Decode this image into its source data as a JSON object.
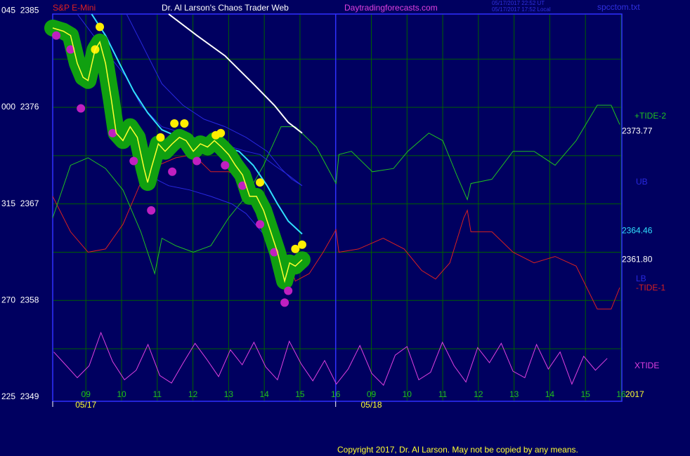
{
  "chart_data": {
    "type": "line",
    "instrument": "S&P E-Mini",
    "title": "Dr. Al Larson's Chaos Trader Web",
    "site": "Daytradingforecasts.com",
    "timestamp_ut": "05/17/2017 22:52 UT",
    "timestamp_local": "05/17/2017 17:52 Local",
    "file": "spcctom.txt",
    "year_label": "2017",
    "copyright": "Copyright 2017, Dr. Al Larson. May not be copied by any means.",
    "xlim": [
      -0.93,
      15.02
    ],
    "ylim": [
      2348.6,
      2384.7
    ],
    "xticks": [
      {
        "value": 0,
        "label": "09"
      },
      {
        "value": 1,
        "label": "10"
      },
      {
        "value": 2,
        "label": "11"
      },
      {
        "value": 3,
        "label": "12"
      },
      {
        "value": 4,
        "label": "13"
      },
      {
        "value": 5,
        "label": "14"
      },
      {
        "value": 6,
        "label": "15"
      },
      {
        "value": 7,
        "label": "16"
      },
      {
        "value": 8,
        "label": "09"
      },
      {
        "value": 9,
        "label": "10"
      },
      {
        "value": 10,
        "label": "11"
      },
      {
        "value": 11,
        "label": "12"
      },
      {
        "value": 12,
        "label": "13"
      },
      {
        "value": 13,
        "label": "14"
      },
      {
        "value": 14,
        "label": "15"
      },
      {
        "value": 15,
        "label": "16"
      }
    ],
    "date_ticks": [
      {
        "value": 0,
        "label": "05/17"
      },
      {
        "value": 8,
        "label": "05/18"
      }
    ],
    "day_separator": 7,
    "yticks": [
      {
        "value": 2385,
        "label": "045  2385"
      },
      {
        "value": 2376,
        "label": "000  2376"
      },
      {
        "value": 2367,
        "label": "315  2367"
      },
      {
        "value": 2358,
        "label": "270  2358"
      },
      {
        "value": 2349,
        "label": "225  2349"
      }
    ],
    "ygrid": [
      2380.5,
      2376,
      2371.5,
      2367,
      2362.5,
      2358,
      2353.5
    ],
    "grid": true,
    "series": [
      {
        "name": "XTIDE",
        "color": "#e040e0",
        "width": 1,
        "x": [
          -0.9,
          -0.57,
          -0.24,
          0.09,
          0.42,
          0.75,
          1.08,
          1.41,
          1.74,
          2.07,
          2.4,
          2.73,
          3.06,
          3.39,
          3.72,
          4.05,
          4.38,
          4.71,
          5.04,
          5.37,
          5.7,
          6.03,
          6.36,
          6.69,
          7.02,
          7.35,
          7.68,
          8.01,
          8.34,
          8.67,
          9.0,
          9.33,
          9.66,
          9.99,
          10.32,
          10.65,
          10.98,
          11.31,
          11.64,
          11.97,
          12.3,
          12.63,
          12.96,
          13.29,
          13.62,
          13.95,
          14.28,
          14.61
        ],
        "values": [
          2353.2,
          2352.0,
          2350.8,
          2351.9,
          2355.0,
          2352.3,
          2350.6,
          2351.5,
          2353.9,
          2351.0,
          2350.3,
          2352.2,
          2354.0,
          2352.5,
          2350.9,
          2353.4,
          2352.0,
          2354.1,
          2351.8,
          2350.6,
          2354.2,
          2352.1,
          2350.5,
          2352.4,
          2350.2,
          2351.6,
          2353.8,
          2351.2,
          2350.1,
          2352.9,
          2353.7,
          2350.6,
          2351.3,
          2354.1,
          2351.9,
          2350.4,
          2353.6,
          2352.2,
          2354.0,
          2351.4,
          2350.8,
          2353.9,
          2351.6,
          2353.2,
          2350.2,
          2352.8,
          2351.5,
          2352.6
        ]
      },
      {
        "name": "-TIDE-1",
        "color": "#d82020",
        "width": 1,
        "x": [
          -0.93,
          -0.43,
          0.06,
          0.55,
          1.04,
          1.54,
          2.03,
          2.52,
          3.01,
          3.5,
          4.0,
          4.49,
          4.98,
          5.47,
          5.87,
          6.26,
          6.65,
          7.01,
          7.09,
          7.64,
          8.33,
          8.92,
          9.41,
          9.8,
          10.2,
          10.59,
          10.69,
          10.79,
          11.38,
          11.97,
          12.56,
          13.15,
          13.74,
          14.33,
          14.72,
          14.96
        ],
        "values": [
          2367.7,
          2364.4,
          2362.5,
          2362.8,
          2365.1,
          2369.0,
          2370.6,
          2371.3,
          2371.6,
          2370.0,
          2370.0,
          2369.3,
          2367.0,
          2363.8,
          2359.8,
          2360.5,
          2362.5,
          2364.6,
          2362.5,
          2362.8,
          2363.8,
          2362.8,
          2360.8,
          2360.0,
          2361.5,
          2365.7,
          2366.4,
          2364.4,
          2364.4,
          2362.5,
          2361.5,
          2362.1,
          2361.2,
          2357.2,
          2357.2,
          2359.2
        ]
      },
      {
        "name": "+TIDE-2",
        "color": "#20c020",
        "width": 1,
        "last": 2373.77,
        "x": [
          -0.93,
          -0.43,
          0.06,
          0.55,
          1.04,
          1.54,
          1.93,
          2.13,
          2.52,
          3.01,
          3.5,
          4.0,
          4.49,
          4.98,
          5.47,
          5.87,
          6.46,
          7.01,
          7.09,
          7.44,
          8.03,
          8.62,
          9.02,
          9.61,
          10.0,
          10.39,
          10.69,
          10.79,
          11.38,
          11.97,
          12.56,
          13.15,
          13.74,
          14.33,
          14.72,
          14.96
        ],
        "values": [
          2365.7,
          2370.6,
          2371.3,
          2370.3,
          2368.3,
          2364.4,
          2360.5,
          2363.8,
          2363.1,
          2362.5,
          2363.1,
          2365.7,
          2367.7,
          2370.6,
          2374.2,
          2374.2,
          2372.3,
          2368.9,
          2371.6,
          2371.9,
          2370.0,
          2370.3,
          2371.9,
          2373.6,
          2372.9,
          2369.7,
          2367.4,
          2368.9,
          2369.3,
          2371.9,
          2371.9,
          2370.6,
          2372.9,
          2376.2,
          2376.2,
          2374.4
        ]
      },
      {
        "name": "UB",
        "color": "#2828e0",
        "width": 1,
        "x": [
          -0.24,
          0.35,
          0.75,
          1.14,
          1.54,
          2.13,
          2.72,
          3.5,
          4.09,
          4.49,
          4.88,
          5.28,
          5.67,
          6.06
        ],
        "values": [
          2384.7,
          2382.1,
          2380.4,
          2378.8,
          2376.2,
          2374.2,
          2373.6,
          2372.6,
          2372.3,
          2371.9,
          2371.6,
          2370.6,
          2369.7,
          2368.7
        ]
      },
      {
        "color": "#2828e0",
        "width": 1,
        "x": [
          1.14,
          1.54,
          2.13,
          2.72,
          3.31,
          3.9,
          4.49,
          5.08,
          5.47,
          5.77,
          6.06
        ],
        "values": [
          2384.7,
          2382.1,
          2378.2,
          2376.2,
          2374.9,
          2374.2,
          2373.2,
          2371.9,
          2370.3,
          2369.3,
          2368.7
        ]
      },
      {
        "name": "LB",
        "color": "#2828e0",
        "width": 1,
        "x": [
          1.73,
          2.32,
          2.91,
          3.5,
          4.09,
          4.49,
          5.08,
          5.47,
          5.87
        ],
        "values": [
          2369.7,
          2368.7,
          2368.3,
          2367.7,
          2367.0,
          2366.1,
          2363.8,
          2361.8,
          2361.2
        ]
      },
      {
        "color": "#30e0ff",
        "width": 2,
        "last": 2364.46,
        "x": [
          0.16,
          0.55,
          0.94,
          1.34,
          1.73,
          2.13,
          2.62,
          3.11,
          3.5,
          3.9,
          4.29,
          4.69,
          5.08,
          5.37,
          5.67,
          6.06
        ],
        "values": [
          2384.7,
          2382.7,
          2380.1,
          2377.5,
          2375.5,
          2373.9,
          2373.2,
          2372.9,
          2372.6,
          2372.3,
          2371.9,
          2370.6,
          2368.7,
          2367.0,
          2365.4,
          2364.2
        ]
      },
      {
        "color": "#ffffff",
        "width": 2,
        "x": [
          2.32,
          3.11,
          3.9,
          4.69,
          5.28,
          5.67,
          6.06
        ],
        "values": [
          2384.7,
          2382.7,
          2380.8,
          2378.2,
          2376.2,
          2374.6,
          2373.6
        ]
      },
      {
        "color": "#ffff30",
        "width": 1.5,
        "band_color": "#10a010",
        "last": {
          "value": 2361.8,
          "label": "2361.80"
        },
        "x": [
          -0.93,
          -0.63,
          -0.43,
          -0.24,
          -0.08,
          0.06,
          0.26,
          0.39,
          0.55,
          0.71,
          0.85,
          1.04,
          1.24,
          1.44,
          1.63,
          1.73,
          1.83,
          2.03,
          2.22,
          2.42,
          2.62,
          2.81,
          3.01,
          3.21,
          3.41,
          3.6,
          3.8,
          4.0,
          4.19,
          4.39,
          4.59,
          4.78,
          4.98,
          5.18,
          5.37,
          5.57,
          5.71,
          5.87,
          6.06
        ],
        "values": [
          2383.4,
          2383.1,
          2382.7,
          2380.1,
          2378.8,
          2378.5,
          2381.4,
          2382.1,
          2380.1,
          2376.8,
          2373.6,
          2372.9,
          2374.2,
          2373.2,
          2370.3,
          2369.0,
          2370.3,
          2372.6,
          2371.9,
          2372.6,
          2373.2,
          2372.9,
          2371.9,
          2372.6,
          2372.3,
          2372.9,
          2372.3,
          2371.6,
          2370.6,
          2369.7,
          2367.7,
          2367.7,
          2366.4,
          2364.4,
          2362.5,
          2359.8,
          2361.5,
          2361.2,
          2361.8
        ]
      }
    ],
    "markers": [
      {
        "color": "#c020c0",
        "x": [
          -0.83,
          -0.43,
          -0.14,
          0.75,
          1.34,
          1.83,
          2.42,
          3.11,
          3.9,
          4.39,
          4.88,
          5.28,
          5.57,
          5.67
        ],
        "values": [
          2382.7,
          2381.4,
          2375.9,
          2373.6,
          2371.0,
          2366.4,
          2370.0,
          2371.0,
          2370.6,
          2368.7,
          2365.1,
          2362.5,
          2357.8,
          2358.9
        ]
      },
      {
        "color": "#ffee00",
        "x": [
          0.39,
          0.26,
          2.09,
          2.48,
          2.76,
          3.64,
          3.78,
          4.88,
          5.87,
          6.06
        ],
        "values": [
          2383.5,
          2381.4,
          2373.2,
          2374.5,
          2374.5,
          2373.4,
          2373.6,
          2369.0,
          2362.8,
          2363.2
        ]
      }
    ]
  }
}
